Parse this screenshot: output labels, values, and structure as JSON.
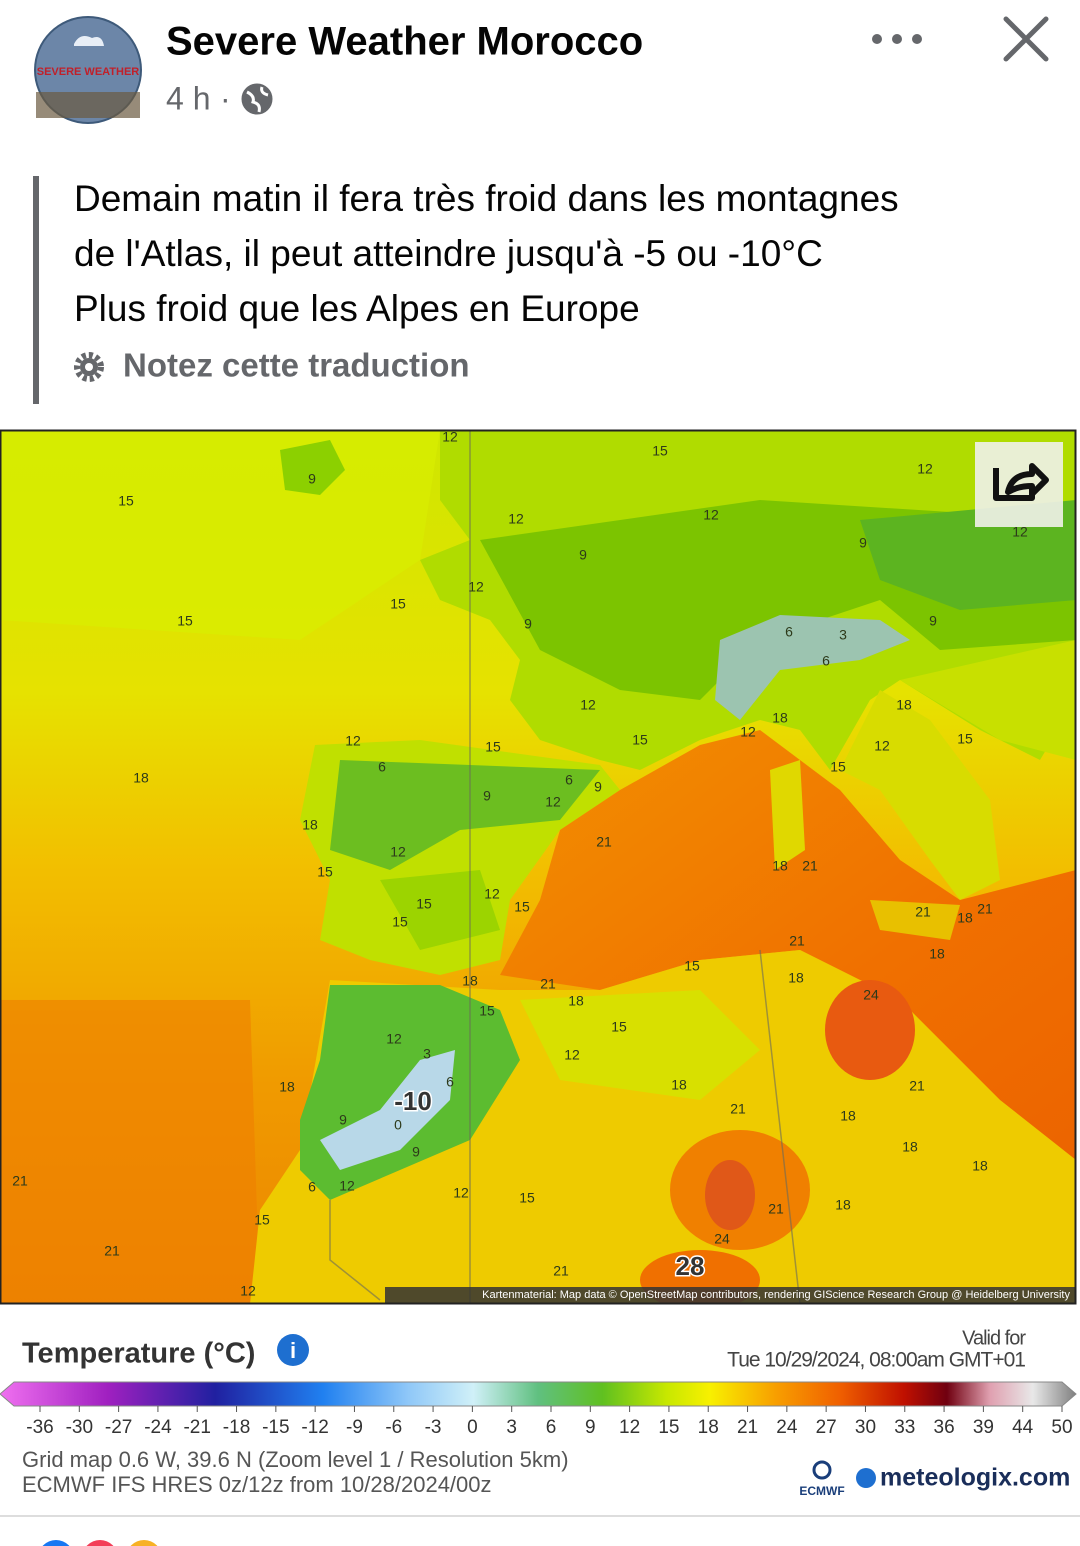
{
  "header": {
    "avatar_text": "SEVERE WEATHER",
    "page_name": "Severe Weather Morocco",
    "time": "4 h",
    "separator": "·"
  },
  "post": {
    "lines": [
      "Demain matin il fera très froid dans les montagnes",
      "de l'Atlas, il peut atteindre jusqu'à -5 ou -10°C",
      "Plus froid que les Alpes en Europe"
    ],
    "translation_note": "Notez cette traduction"
  },
  "map": {
    "labels": [
      12,
      9,
      15,
      12,
      15,
      12,
      12,
      12,
      9,
      9,
      12,
      15,
      15,
      9,
      9,
      3,
      6,
      6,
      12,
      18,
      18,
      12,
      15,
      12,
      15,
      12,
      15,
      15,
      18,
      6,
      6,
      9,
      9,
      12,
      18,
      21,
      12,
      15,
      18,
      21,
      12,
      15,
      15,
      15,
      21,
      18,
      21,
      21,
      18,
      15,
      18,
      21,
      18,
      18,
      15,
      24,
      12,
      15,
      12,
      3,
      6,
      18,
      18,
      -10,
      21,
      21,
      18,
      9,
      0,
      18,
      9,
      18,
      21,
      6,
      12,
      12,
      15,
      15,
      21,
      18,
      24,
      21,
      21,
      28,
      12
    ],
    "attribution": "Kartenmaterial: Map data © OpenStreetMap contributors, rendering GIScience Research Group @ Heidelberg University"
  },
  "legend": {
    "title": "Temperature (°C)",
    "valid_label": "Valid for",
    "valid_time": "Tue 10/29/2024, 08:00am GMT+01",
    "scale": [
      -36,
      -30,
      -27,
      -24,
      -21,
      -18,
      -15,
      -12,
      -9,
      -6,
      -3,
      0,
      3,
      6,
      9,
      12,
      15,
      18,
      21,
      24,
      27,
      30,
      33,
      36,
      39,
      44,
      50
    ],
    "grid_info": "Grid map 0.6 W, 39.6 N (Zoom level 1 / Resolution 5km)",
    "model_info": "ECMWF IFS HRES 0z/12z from 10/28/2024/00z",
    "ecmwf": "ECMWF",
    "brand": "meteologix.com"
  }
}
